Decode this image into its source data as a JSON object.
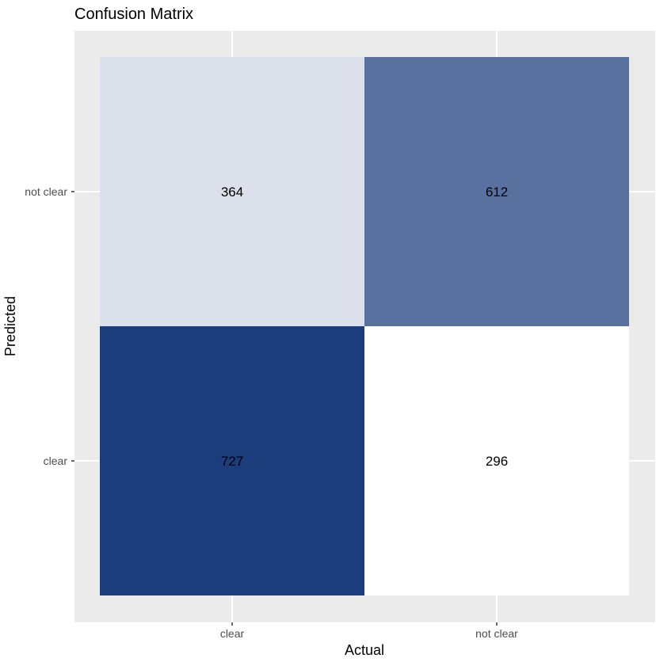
{
  "chart_data": {
    "type": "heatmap",
    "title": "Confusion Matrix",
    "xlabel": "Actual",
    "ylabel": "Predicted",
    "x_categories": [
      "clear",
      "not clear"
    ],
    "y_categories": [
      "clear",
      "not clear"
    ],
    "cells": [
      {
        "actual": "clear",
        "predicted": "not clear",
        "value": 364
      },
      {
        "actual": "not clear",
        "predicted": "not clear",
        "value": 612
      },
      {
        "actual": "clear",
        "predicted": "clear",
        "value": 727
      },
      {
        "actual": "not clear",
        "predicted": "clear",
        "value": 296
      }
    ],
    "color_scale": {
      "low": "#ffffff",
      "high": "#1c3d7c"
    },
    "panel_background": "#ebebeb",
    "grid": true,
    "legend": "none"
  }
}
